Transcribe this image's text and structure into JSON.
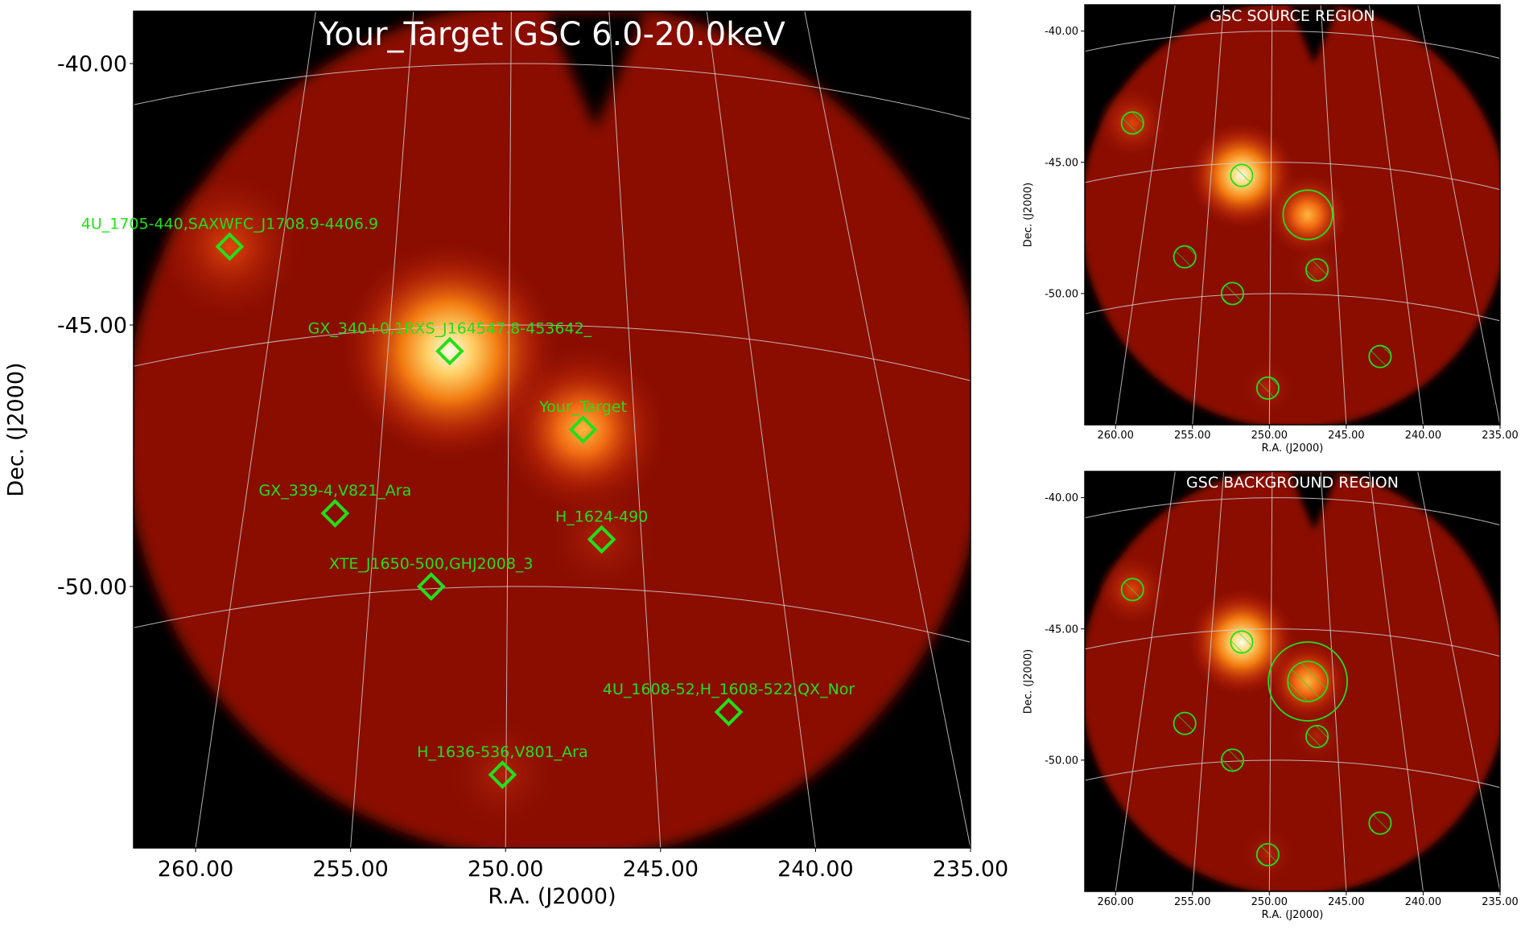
{
  "chart_data": [
    {
      "type": "heatmap",
      "panel": "main",
      "title": "Your_Target GSC 6.0-20.0keV",
      "xlabel": "R.A. (J2000)",
      "ylabel": "Dec. (J2000)",
      "x_ticks": [
        {
          "value": 260,
          "label": "260.00"
        },
        {
          "value": 255,
          "label": "255.00"
        },
        {
          "value": 250,
          "label": "250.00"
        },
        {
          "value": 245,
          "label": "245.00"
        },
        {
          "value": 240,
          "label": "240.00"
        },
        {
          "value": 235,
          "label": "235.00"
        }
      ],
      "y_ticks": [
        {
          "value": -40,
          "label": "-40.00"
        },
        {
          "value": -45,
          "label": "-45.00"
        },
        {
          "value": -50,
          "label": "-50.00"
        }
      ],
      "xlim": [
        262,
        235
      ],
      "ylim": [
        -55,
        -39
      ],
      "grid": true,
      "sources": [
        {
          "name": "4U_1705-440,SAXWFC_J1708.9-4406.9",
          "ra": 258.9,
          "dec": -43.5
        },
        {
          "name": "GX_340+0,1RXS_J164547.8-453642_",
          "ra": 251.8,
          "dec": -45.5
        },
        {
          "name": "Your_Target",
          "ra": 247.5,
          "dec": -47.0
        },
        {
          "name": "GX_339-4,V821_Ara",
          "ra": 255.5,
          "dec": -48.6
        },
        {
          "name": "H_1624-490",
          "ra": 246.9,
          "dec": -49.1
        },
        {
          "name": "XTE_J1650-500,GHJ2008_3",
          "ra": 252.4,
          "dec": -50.0
        },
        {
          "name": "4U_1608-52,H_1608-522,QX_Nor",
          "ra": 242.8,
          "dec": -52.4
        },
        {
          "name": "H_1636-536,V801_Ara",
          "ra": 250.1,
          "dec": -53.6
        }
      ]
    },
    {
      "type": "heatmap",
      "panel": "source-region",
      "title": "GSC SOURCE REGION",
      "xlabel": "R.A. (J2000)",
      "ylabel": "Dec. (J2000)",
      "x_ticks": [
        {
          "value": 260,
          "label": "260.00"
        },
        {
          "value": 255,
          "label": "255.00"
        },
        {
          "value": 250,
          "label": "250.00"
        },
        {
          "value": 245,
          "label": "245.00"
        },
        {
          "value": 240,
          "label": "240.00"
        },
        {
          "value": 235,
          "label": "235.00"
        }
      ],
      "y_ticks": [
        {
          "value": -40,
          "label": "-40.00"
        },
        {
          "value": -45,
          "label": "-45.00"
        },
        {
          "value": -50,
          "label": "-50.00"
        }
      ],
      "xlim": [
        262,
        235
      ],
      "ylim": [
        -55,
        -39
      ],
      "regions": {
        "source_circle": {
          "ra": 247.5,
          "dec": -47.0,
          "radius_deg": 2.5
        },
        "excluded_circles": [
          {
            "ra": 258.9,
            "dec": -43.5
          },
          {
            "ra": 251.8,
            "dec": -45.5
          },
          {
            "ra": 255.5,
            "dec": -48.6
          },
          {
            "ra": 246.9,
            "dec": -49.1
          },
          {
            "ra": 252.4,
            "dec": -50.0
          },
          {
            "ra": 242.8,
            "dec": -52.4
          },
          {
            "ra": 250.1,
            "dec": -53.6
          }
        ]
      }
    },
    {
      "type": "heatmap",
      "panel": "background-region",
      "title": "GSC BACKGROUND REGION",
      "xlabel": "R.A. (J2000)",
      "ylabel": "Dec. (J2000)",
      "x_ticks": [
        {
          "value": 260,
          "label": "260.00"
        },
        {
          "value": 255,
          "label": "255.00"
        },
        {
          "value": 250,
          "label": "250.00"
        },
        {
          "value": 245,
          "label": "245.00"
        },
        {
          "value": 240,
          "label": "240.00"
        },
        {
          "value": 235,
          "label": "235.00"
        }
      ],
      "y_ticks": [
        {
          "value": -40,
          "label": "-40.00"
        },
        {
          "value": -45,
          "label": "-45.00"
        },
        {
          "value": -50,
          "label": "-50.00"
        }
      ],
      "xlim": [
        262,
        235
      ],
      "ylim": [
        -55,
        -39
      ],
      "regions": {
        "annulus": {
          "ra": 247.5,
          "dec": -47.0,
          "inner_radius_deg": 2.5,
          "outer_radius_deg": 5.0
        },
        "excluded_circles": [
          {
            "ra": 258.9,
            "dec": -43.5
          },
          {
            "ra": 251.8,
            "dec": -45.5
          },
          {
            "ra": 247.5,
            "dec": -47.0
          },
          {
            "ra": 255.5,
            "dec": -48.6
          },
          {
            "ra": 246.9,
            "dec": -49.1
          },
          {
            "ra": 252.4,
            "dec": -50.0
          },
          {
            "ra": 242.8,
            "dec": -52.4
          },
          {
            "ra": 250.1,
            "dec": -53.6
          }
        ]
      }
    }
  ],
  "colors": {
    "background": "#000000",
    "field": "#8a0f04",
    "marker": "#22e01a",
    "grid": "#d0d0d0",
    "title_text": "#ffffff"
  }
}
